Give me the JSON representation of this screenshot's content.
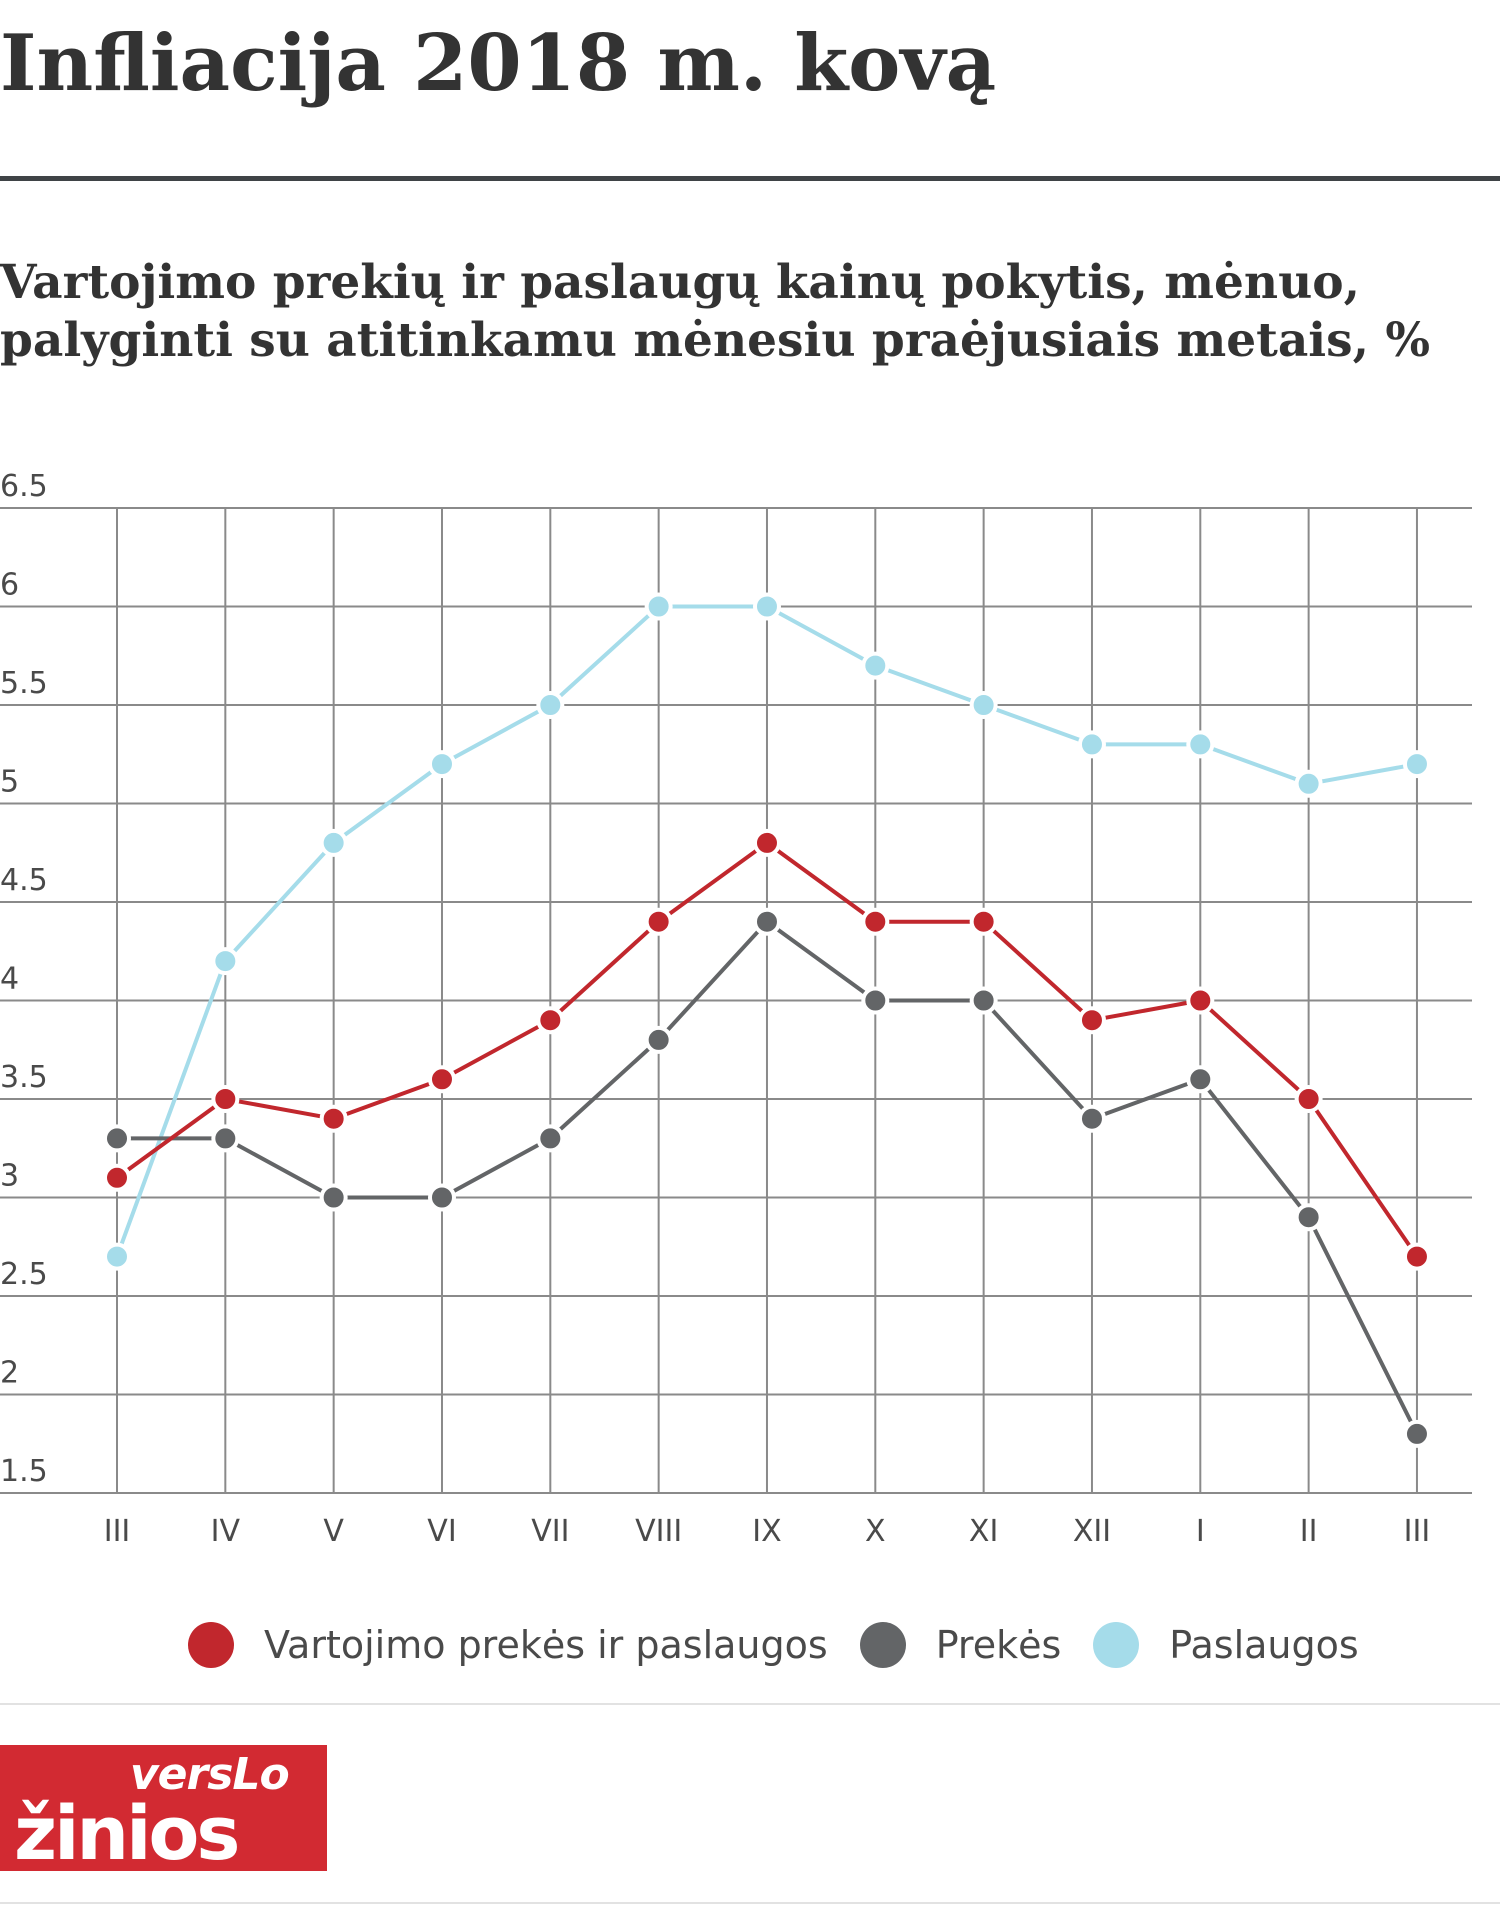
{
  "header": {
    "title": "Infliacija 2018 m. kovą",
    "subtitle_line1": "Vartojimo prekių ir paslaugų kainų pokytis, mėnuo,",
    "subtitle_line2": "palyginti su atitinkamu mėnesiu praėjusiais metais, %"
  },
  "logo": {
    "line1": "versLo",
    "line2": "žinios",
    "color": "#d22a32"
  },
  "chart_data": {
    "type": "line",
    "title": "Infliacija 2018 m. kovą",
    "subtitle": "Vartojimo prekių ir paslaugų kainų pokytis, mėnuo, palyginti su atitinkamu mėnesiu praėjusiais metais, %",
    "categories": [
      "III",
      "IV",
      "V",
      "VI",
      "VII",
      "VIII",
      "IX",
      "X",
      "XI",
      "XII",
      "I",
      "II",
      "III"
    ],
    "y_ticks": [
      "6.5",
      "6",
      "5.5",
      "5",
      "4.5",
      "4",
      "3.5",
      "3",
      "2.5",
      "2",
      "1.5"
    ],
    "ylim": [
      1.5,
      6.5
    ],
    "grid": true,
    "legend_position": "bottom",
    "series": [
      {
        "name": "Vartojimo prekės ir paslaugos",
        "color": "#c1272d",
        "values": [
          3.1,
          3.5,
          3.4,
          3.6,
          3.9,
          4.4,
          4.8,
          4.4,
          4.4,
          3.9,
          4.0,
          3.5,
          2.7
        ]
      },
      {
        "name": "Prekės",
        "color": "#636567",
        "values": [
          3.3,
          3.3,
          3.0,
          3.0,
          3.3,
          3.8,
          4.4,
          4.0,
          4.0,
          3.4,
          3.6,
          2.9,
          1.8
        ]
      },
      {
        "name": "Paslaugos",
        "color": "#a5dcea",
        "values": [
          2.7,
          4.2,
          4.8,
          5.2,
          5.5,
          6.0,
          6.0,
          5.7,
          5.5,
          5.3,
          5.3,
          5.1,
          5.2
        ]
      }
    ]
  }
}
